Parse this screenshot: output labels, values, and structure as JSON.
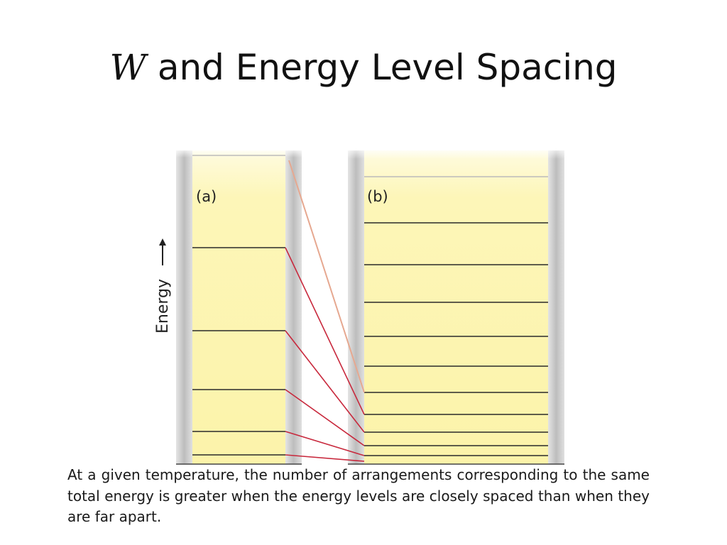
{
  "title": {
    "symbol": "W",
    "text": "and Energy Level Spacing"
  },
  "diagram": {
    "panel_a_label": "(a)",
    "panel_b_label": "(b)",
    "axis_label": "Energy",
    "colors": {
      "column_fill": "#fdf6b4",
      "side_bar": "#c9c9c9",
      "level_line": "#2a2a2a",
      "connector": "#c8283c"
    }
  },
  "caption": "At a given temperature, the number of arrangements corresponding to the same total energy is greater when the energy levels are closely spaced than when they are far apart."
}
